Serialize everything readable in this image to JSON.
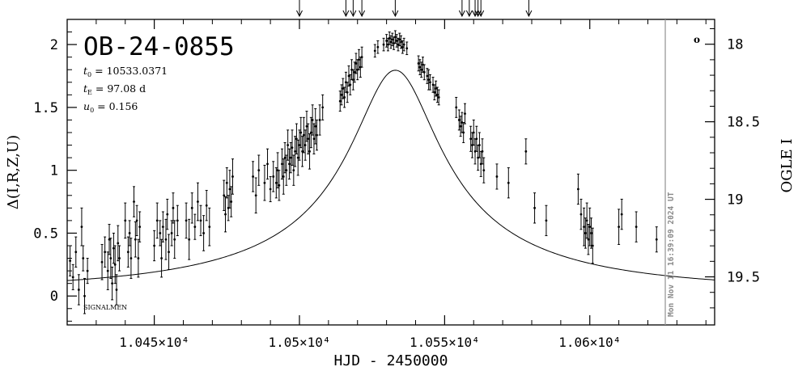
{
  "chart_data": {
    "type": "scatter",
    "title": "OB-24-0855",
    "params": [
      {
        "sym": "t",
        "sub": "0",
        "val": "= 10533.0371"
      },
      {
        "sym": "t",
        "sub": "E",
        "val": "= 97.08 d"
      },
      {
        "sym": "u",
        "sub": "0",
        "val": "= 0.156"
      }
    ],
    "xlabel": "HJD - 2450000",
    "ylabel_left": "Δ(I,R,Z,U)",
    "ylabel_right": "OGLE I",
    "watermark": "Mon Nov 11 16:39:09 2024 UT",
    "signature": "SIGNALMEN",
    "legend_symbol": "o",
    "xlim": [
      10420,
      10643
    ],
    "ylim_left": [
      -0.23,
      2.2
    ],
    "ylim_right": [
      19.81,
      17.84
    ],
    "now_line_x": 10626,
    "x_ticks": [
      {
        "value": 10450,
        "label": "1.045×10⁴"
      },
      {
        "value": 10500,
        "label": "1.05×10⁴"
      },
      {
        "value": 10550,
        "label": "1.055×10⁴"
      },
      {
        "value": 10600,
        "label": "1.06×10⁴"
      }
    ],
    "y_left_ticks": [
      {
        "value": 0,
        "label": "0"
      },
      {
        "value": 0.5,
        "label": "0.5"
      },
      {
        "value": 1,
        "label": "1"
      },
      {
        "value": 1.5,
        "label": "1.5"
      },
      {
        "value": 2,
        "label": "2"
      }
    ],
    "y_right_ticks": [
      {
        "value": 18,
        "label": "18"
      },
      {
        "value": 18.5,
        "label": "18.5"
      },
      {
        "value": 19,
        "label": "19"
      },
      {
        "value": 19.5,
        "label": "19.5"
      }
    ],
    "arrows_x": [
      10500,
      10516,
      10518.5,
      10521.5,
      10533,
      10556,
      10558.5,
      10560.5,
      10561.5,
      10562.5,
      10579
    ],
    "model": {
      "t0": 10533.0371,
      "tE": 97.08,
      "u0": 0.156,
      "base": 0.046,
      "amp": 0.32
    },
    "points": [
      [
        10421,
        0.28,
        0.12
      ],
      [
        10422,
        0.15,
        0.1
      ],
      [
        10423,
        0.35,
        0.12
      ],
      [
        10424,
        0.05,
        0.12
      ],
      [
        10425,
        0.55,
        0.15
      ],
      [
        10425.5,
        0.3,
        0.1
      ],
      [
        10426,
        0.0,
        0.14
      ],
      [
        10427,
        0.2,
        0.1
      ],
      [
        10432,
        0.27,
        0.14
      ],
      [
        10433,
        0.35,
        0.12
      ],
      [
        10434,
        0.2,
        0.15
      ],
      [
        10434.5,
        0.45,
        0.12
      ],
      [
        10435,
        0.3,
        0.16
      ],
      [
        10435.5,
        0.1,
        0.13
      ],
      [
        10436,
        0.38,
        0.12
      ],
      [
        10436.5,
        0.25,
        0.15
      ],
      [
        10437,
        0.05,
        0.12
      ],
      [
        10437.5,
        0.42,
        0.14
      ],
      [
        10438,
        0.3,
        0.1
      ],
      [
        10440,
        0.6,
        0.14
      ],
      [
        10441,
        0.35,
        0.12
      ],
      [
        10441.5,
        0.5,
        0.1
      ],
      [
        10442,
        0.3,
        0.16
      ],
      [
        10443,
        0.75,
        0.12
      ],
      [
        10443.5,
        0.45,
        0.14
      ],
      [
        10444,
        0.6,
        0.12
      ],
      [
        10444.5,
        0.3,
        0.15
      ],
      [
        10445,
        0.55,
        0.12
      ],
      [
        10450,
        0.4,
        0.12
      ],
      [
        10451,
        0.6,
        0.14
      ],
      [
        10452,
        0.5,
        0.1
      ],
      [
        10452.5,
        0.3,
        0.15
      ],
      [
        10453,
        0.55,
        0.12
      ],
      [
        10454,
        0.45,
        0.16
      ],
      [
        10454.5,
        0.65,
        0.12
      ],
      [
        10455,
        0.35,
        0.14
      ],
      [
        10456,
        0.5,
        0.1
      ],
      [
        10456.5,
        0.7,
        0.12
      ],
      [
        10457,
        0.45,
        0.15
      ],
      [
        10458,
        0.6,
        0.12
      ],
      [
        10461,
        0.6,
        0.14
      ],
      [
        10462,
        0.45,
        0.16
      ],
      [
        10463,
        0.7,
        0.12
      ],
      [
        10464,
        0.55,
        0.1
      ],
      [
        10465,
        0.75,
        0.15
      ],
      [
        10466,
        0.6,
        0.12
      ],
      [
        10467,
        0.5,
        0.14
      ],
      [
        10468,
        0.72,
        0.12
      ],
      [
        10469,
        0.55,
        0.15
      ],
      [
        10474,
        0.8,
        0.12
      ],
      [
        10474.5,
        0.65,
        0.14
      ],
      [
        10475,
        0.9,
        0.12
      ],
      [
        10475.5,
        0.7,
        0.1
      ],
      [
        10476,
        0.85,
        0.15
      ],
      [
        10476.5,
        0.75,
        0.12
      ],
      [
        10477,
        0.95,
        0.14
      ],
      [
        10484,
        0.95,
        0.12
      ],
      [
        10485,
        0.8,
        0.14
      ],
      [
        10486,
        1.0,
        0.12
      ],
      [
        10488,
        0.9,
        0.14
      ],
      [
        10489,
        1.05,
        0.12
      ],
      [
        10490,
        0.85,
        0.1
      ],
      [
        10491,
        0.95,
        0.12
      ],
      [
        10492,
        0.9,
        0.12
      ],
      [
        10492.5,
        1.0,
        0.14
      ],
      [
        10493,
        0.88,
        0.12
      ],
      [
        10494,
        1.05,
        0.12
      ],
      [
        10494.5,
        0.95,
        0.14
      ],
      [
        10495,
        1.1,
        0.12
      ],
      [
        10495.5,
        1.0,
        0.12
      ],
      [
        10496,
        1.2,
        0.12
      ],
      [
        10496.5,
        1.05,
        0.12
      ],
      [
        10497,
        1.1,
        0.12
      ],
      [
        10497.5,
        1.18,
        0.14
      ],
      [
        10498,
        1.0,
        0.12
      ],
      [
        10498.5,
        1.15,
        0.12
      ],
      [
        10499,
        1.25,
        0.12
      ],
      [
        10499.5,
        1.1,
        0.14
      ],
      [
        10500,
        1.2,
        0.12
      ],
      [
        10500.5,
        1.3,
        0.12
      ],
      [
        10501,
        1.15,
        0.12
      ],
      [
        10501.5,
        1.28,
        0.14
      ],
      [
        10502,
        1.2,
        0.12
      ],
      [
        10502.5,
        1.35,
        0.12
      ],
      [
        10503,
        1.25,
        0.12
      ],
      [
        10503.5,
        1.15,
        0.14
      ],
      [
        10504,
        1.3,
        0.12
      ],
      [
        10504.5,
        1.4,
        0.12
      ],
      [
        10505,
        1.25,
        0.12
      ],
      [
        10505.5,
        1.35,
        0.14
      ],
      [
        10506,
        1.28,
        0.12
      ],
      [
        10507,
        1.4,
        0.12
      ],
      [
        10508,
        1.5,
        0.1
      ],
      [
        10514,
        1.55,
        0.08
      ],
      [
        10514.5,
        1.6,
        0.08
      ],
      [
        10515,
        1.65,
        0.08
      ],
      [
        10515.5,
        1.58,
        0.08
      ],
      [
        10516,
        1.7,
        0.08
      ],
      [
        10516.5,
        1.62,
        0.08
      ],
      [
        10517,
        1.75,
        0.08
      ],
      [
        10517.5,
        1.68,
        0.08
      ],
      [
        10518,
        1.8,
        0.08
      ],
      [
        10518.5,
        1.72,
        0.08
      ],
      [
        10519,
        1.78,
        0.08
      ],
      [
        10519.5,
        1.85,
        0.08
      ],
      [
        10520,
        1.8,
        0.08
      ],
      [
        10520.5,
        1.88,
        0.08
      ],
      [
        10521,
        1.82,
        0.08
      ],
      [
        10521.5,
        1.9,
        0.08
      ],
      [
        10526,
        1.95,
        0.05
      ],
      [
        10527,
        1.98,
        0.05
      ],
      [
        10529,
        2.0,
        0.05
      ],
      [
        10530,
        2.03,
        0.05
      ],
      [
        10530.5,
        2.0,
        0.05
      ],
      [
        10531,
        2.05,
        0.05
      ],
      [
        10531.5,
        2.02,
        0.05
      ],
      [
        10532,
        2.04,
        0.05
      ],
      [
        10532.5,
        2.01,
        0.05
      ],
      [
        10533,
        2.06,
        0.05
      ],
      [
        10533.5,
        2.03,
        0.05
      ],
      [
        10534,
        2.0,
        0.05
      ],
      [
        10534.5,
        2.04,
        0.05
      ],
      [
        10535,
        2.02,
        0.05
      ],
      [
        10535.5,
        1.98,
        0.05
      ],
      [
        10536,
        2.0,
        0.05
      ],
      [
        10537,
        1.97,
        0.05
      ],
      [
        10541,
        1.85,
        0.06
      ],
      [
        10541.5,
        1.82,
        0.06
      ],
      [
        10542,
        1.8,
        0.06
      ],
      [
        10542.5,
        1.84,
        0.06
      ],
      [
        10543,
        1.78,
        0.06
      ],
      [
        10544,
        1.75,
        0.06
      ],
      [
        10544.5,
        1.72,
        0.08
      ],
      [
        10545,
        1.7,
        0.06
      ],
      [
        10546,
        1.68,
        0.06
      ],
      [
        10546.5,
        1.62,
        0.06
      ],
      [
        10547,
        1.65,
        0.06
      ],
      [
        10547.5,
        1.6,
        0.06
      ],
      [
        10548,
        1.58,
        0.06
      ],
      [
        10554,
        1.5,
        0.08
      ],
      [
        10555,
        1.4,
        0.08
      ],
      [
        10555.5,
        1.35,
        0.08
      ],
      [
        10556,
        1.38,
        0.08
      ],
      [
        10556.5,
        1.3,
        0.08
      ],
      [
        10557,
        1.45,
        0.08
      ],
      [
        10559,
        1.25,
        0.1
      ],
      [
        10559.5,
        1.2,
        0.1
      ],
      [
        10560,
        1.3,
        0.1
      ],
      [
        10560.5,
        1.15,
        0.1
      ],
      [
        10561,
        1.25,
        0.1
      ],
      [
        10561.5,
        1.1,
        0.1
      ],
      [
        10562,
        1.2,
        0.1
      ],
      [
        10562.5,
        1.05,
        0.1
      ],
      [
        10563,
        1.15,
        0.1
      ],
      [
        10563.5,
        1.0,
        0.1
      ],
      [
        10568,
        0.95,
        0.1
      ],
      [
        10572,
        0.9,
        0.12
      ],
      [
        10578,
        1.15,
        0.1
      ],
      [
        10581,
        0.7,
        0.12
      ],
      [
        10585,
        0.6,
        0.12
      ],
      [
        10596,
        0.85,
        0.12
      ],
      [
        10597,
        0.65,
        0.12
      ],
      [
        10598,
        0.55,
        0.15
      ],
      [
        10598.5,
        0.5,
        0.12
      ],
      [
        10599,
        0.6,
        0.14
      ],
      [
        10599.5,
        0.45,
        0.12
      ],
      [
        10600,
        0.55,
        0.15
      ],
      [
        10600.5,
        0.5,
        0.12
      ],
      [
        10601,
        0.4,
        0.14
      ],
      [
        10610,
        0.55,
        0.14
      ],
      [
        10611,
        0.65,
        0.12
      ],
      [
        10616,
        0.55,
        0.12
      ],
      [
        10623,
        0.45,
        0.1
      ]
    ]
  }
}
